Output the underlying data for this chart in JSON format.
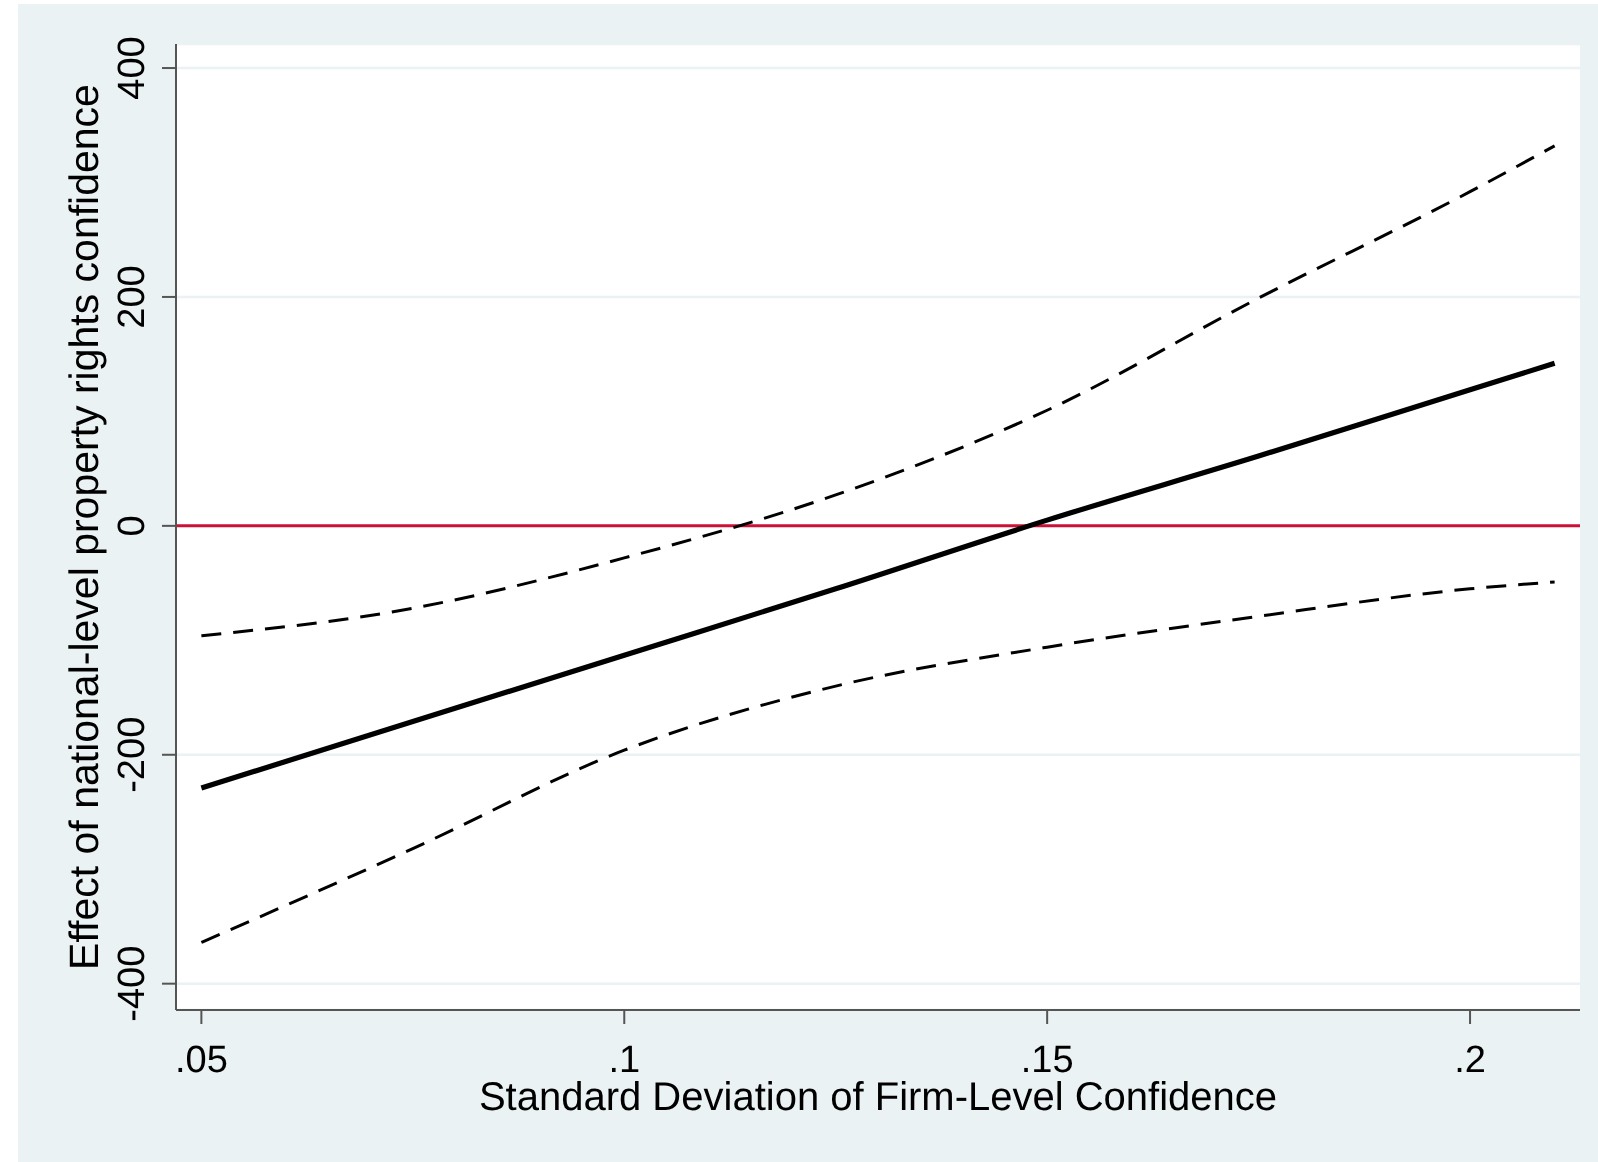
{
  "chart_data": {
    "type": "line",
    "xlabel": "Standard Deviation of Firm-Level Confidence",
    "ylabel": "Effect of national-level property rights confidence",
    "x": [
      0.05,
      0.075,
      0.1,
      0.125,
      0.15,
      0.175,
      0.2,
      0.21
    ],
    "series": [
      {
        "color": "#000000",
        "line_style": "solid",
        "values": [
          -229,
          -171,
          -113,
          -55,
          5,
          61,
          119,
          142
        ]
      },
      {
        "color": "#000000",
        "line_style": "dashed",
        "values": [
          -96,
          -72,
          -28,
          27,
          101,
          199,
          292,
          332
        ]
      },
      {
        "color": "#000000",
        "line_style": "dashed",
        "values": [
          -364,
          -282,
          -196,
          -140,
          -106,
          -79,
          -55,
          -49
        ]
      }
    ],
    "xlim": [
      0.047,
      0.213
    ],
    "ylim": [
      -423,
      421
    ],
    "xticks": [
      {
        "value": 0.05,
        "label": ".05"
      },
      {
        "value": 0.1,
        "label": ".1"
      },
      {
        "value": 0.15,
        "label": ".15"
      },
      {
        "value": 0.2,
        "label": ".2"
      }
    ],
    "yticks": [
      -400,
      -200,
      0,
      200,
      400
    ],
    "grid": "y",
    "ref_lines": [
      {
        "axis": "y",
        "value": 0,
        "color": "#cc1138"
      }
    ],
    "marker": "none"
  }
}
